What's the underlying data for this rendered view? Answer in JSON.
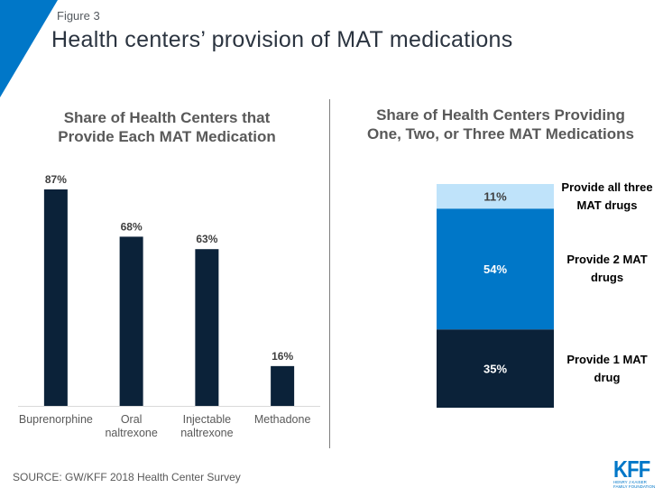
{
  "header": {
    "figure_label": "Figure 3",
    "title": "Health centers’ provision of MAT medications"
  },
  "colors": {
    "accent": "#0077c8",
    "bar_dark": "#0b2239",
    "seg_light": "#bfe3fa",
    "seg_mid": "#0077c8",
    "seg_dark": "#0b2239"
  },
  "chart_data": [
    {
      "type": "bar",
      "title": "Share of Health Centers that Provide Each MAT Medication",
      "title_lines": [
        "Share of Health Centers that",
        "Provide Each MAT Medication"
      ],
      "categories": [
        "Buprenorphine",
        "Oral naltrexone",
        "Injectable naltrexone",
        "Methadone"
      ],
      "category_lines": [
        [
          "Buprenorphine"
        ],
        [
          "Oral",
          "naltrexone"
        ],
        [
          "Injectable",
          "naltrexone"
        ],
        [
          "Methadone"
        ]
      ],
      "values": [
        87,
        68,
        63,
        16
      ],
      "data_labels": [
        "87%",
        "68%",
        "63%",
        "16%"
      ],
      "unit": "%",
      "xlabel": "",
      "ylabel": "",
      "ylim": [
        0,
        87
      ],
      "grid": false,
      "legend": "none"
    },
    {
      "type": "bar",
      "stacked": true,
      "title": "Share of Health Centers Providing One, Two, or Three MAT Medications",
      "title_lines": [
        "Share of Health Centers Providing",
        "One, Two, or Three MAT Medications"
      ],
      "series": [
        {
          "name": "Provide 1 MAT drug",
          "name_lines": [
            "Provide  1 MAT",
            "drug"
          ],
          "value": 35,
          "label": "35%"
        },
        {
          "name": "Provide 2 MAT drugs",
          "name_lines": [
            "Provide  2 MAT",
            "drugs"
          ],
          "value": 54,
          "label": "54%"
        },
        {
          "name": "Provide all three MAT drugs",
          "name_lines": [
            "Provide  all three",
            "MAT drugs"
          ],
          "value": 11,
          "label": "11%"
        }
      ],
      "ylim": [
        0,
        100
      ],
      "grid": false,
      "legend": "right"
    }
  ],
  "footer": {
    "source": "SOURCE: GW/KFF 2018 Health Center Survey",
    "logo_text": "KFF",
    "logo_sub_1": "HENRY J KAISER",
    "logo_sub_2": "FAMILY FOUNDATION"
  }
}
